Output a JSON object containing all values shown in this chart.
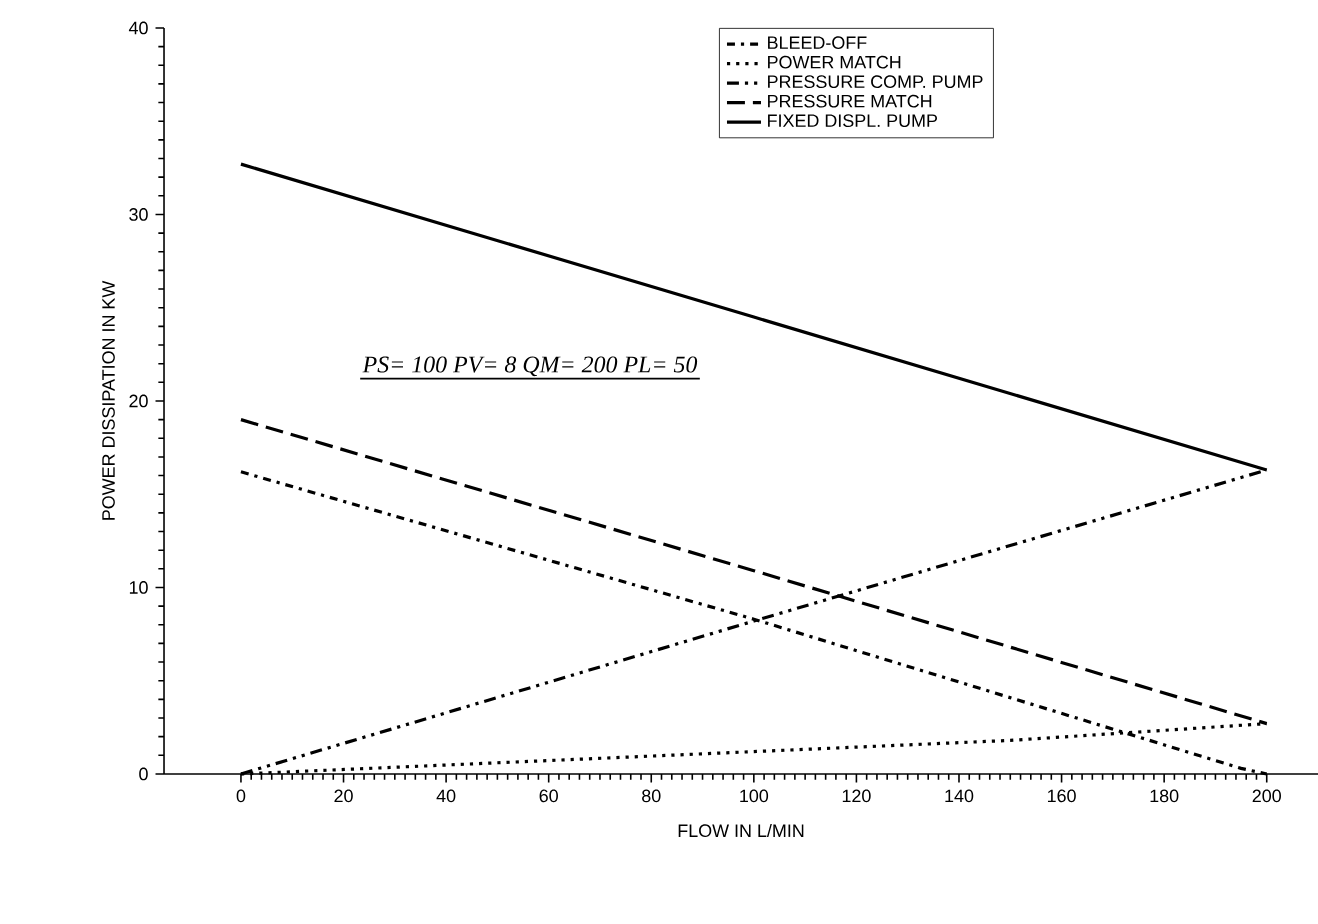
{
  "chart_data": {
    "type": "line",
    "xlabel": "FLOW IN L/MIN",
    "ylabel": "POWER DISSIPATION IN KW",
    "xlim": [
      -15,
      210
    ],
    "ylim": [
      0,
      40
    ],
    "xticks": [
      0,
      20,
      40,
      60,
      80,
      100,
      120,
      140,
      160,
      180,
      200
    ],
    "yticks": [
      0,
      10,
      20,
      30,
      40
    ],
    "legend": "top",
    "grid": false,
    "annotations": [
      "*PS= 100 PV= 8 QM= 200 PL= 50*"
    ],
    "series": [
      {
        "name": "BLEED-OFF",
        "color": "#000000",
        "line_style": "dashdot",
        "x": [
          0,
          100,
          195,
          200
        ],
        "values": [
          16.2,
          8.3,
          0.3,
          0
        ]
      },
      {
        "name": "POWER MATCH",
        "color": "#000000",
        "line_style": "dotted",
        "x": [
          0,
          50,
          100,
          150,
          200
        ],
        "values": [
          0,
          0.6,
          1.2,
          1.8,
          2.7
        ]
      },
      {
        "name": "PRESSURE COMP. PUMP",
        "color": "#000000",
        "line_style": "dashdotdot",
        "x": [
          0,
          100,
          200
        ],
        "values": [
          0,
          8.2,
          16.3
        ]
      },
      {
        "name": "PRESSURE MATCH",
        "color": "#000000",
        "line_style": "dashed",
        "x": [
          0,
          100,
          200
        ],
        "values": [
          19,
          10.9,
          2.7
        ]
      },
      {
        "name": "FIXED DISPL. PUMP",
        "color": "#000000",
        "line_style": "solid",
        "x": [
          0,
          100,
          200
        ],
        "values": [
          32.7,
          24.5,
          16.3
        ]
      }
    ]
  }
}
